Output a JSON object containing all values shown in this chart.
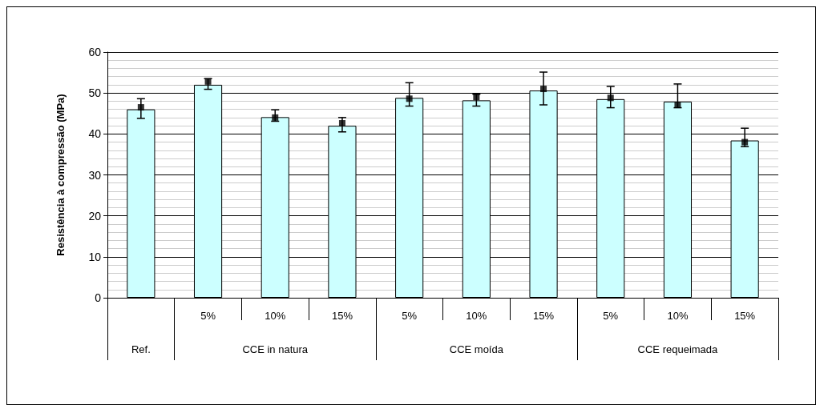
{
  "chart_data": {
    "type": "bar",
    "ylabel": "Resistência à compressão (MPa)",
    "categories": [
      null,
      "5%",
      "10%",
      "15%",
      "5%",
      "10%",
      "15%",
      "5%",
      "10%",
      "15%"
    ],
    "annotations": [
      "Ref.",
      "CCE in natura",
      "CCE moída",
      "CCE requeimada"
    ],
    "series": [
      {
        "color": "#ccffff",
        "values": [
          46,
          52,
          44.1,
          42,
          48.8,
          48.2,
          50.6,
          48.5,
          47.9,
          38.4
        ]
      },
      {
        "type": "scatter",
        "color": "#000000",
        "marker": "square",
        "values": [
          46.5,
          52.8,
          44,
          42.6,
          48.6,
          49,
          51,
          48.8,
          47.1,
          38
        ],
        "errors": [
          [
            43.8,
            48.6
          ],
          [
            50.9,
            53.5
          ],
          [
            43.1,
            45.9
          ],
          [
            40.5,
            44
          ],
          [
            46.8,
            52.5
          ],
          [
            46.8,
            49.7
          ],
          [
            47.1,
            55.1
          ],
          [
            46.4,
            51.6
          ],
          [
            46.4,
            52.2
          ],
          [
            36.9,
            41.4
          ]
        ]
      }
    ],
    "ylim": [
      0,
      60
    ],
    "yticks": [
      0,
      10,
      20,
      30,
      40,
      50,
      60
    ],
    "grid": "y"
  }
}
